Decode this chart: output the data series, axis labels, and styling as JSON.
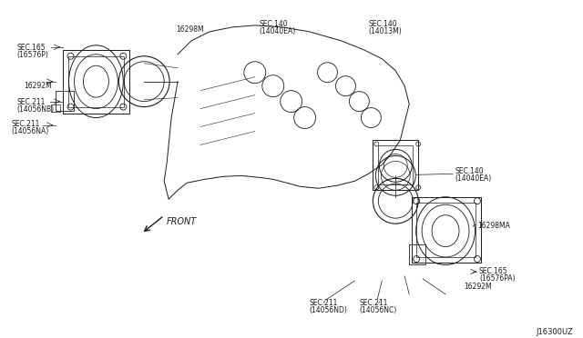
{
  "bg_color": "#ffffff",
  "line_color": "#1a1a1a",
  "fig_width": 6.4,
  "fig_height": 3.72,
  "dpi": 100,
  "labels": {
    "top_left_part": "16298M",
    "sec165_top": "SEC.165",
    "sec165p_top": "(16576P)",
    "sec140_left": "SEC.140",
    "sec140ea_left": "(14040EA)",
    "sec140_right": "SEC.140",
    "sec140m_right": "(14013M)",
    "label_16292M_left": "16292M",
    "sec211_nb": "SEC.211",
    "sec211_nb2": "(14056NB)",
    "sec211_na": "SEC.211",
    "sec211_na2": "(14056NA)",
    "sec140_bottom_right": "SEC.140",
    "sec140ea_bottom_right": "(14040EA)",
    "label_16298MA": "16298MA",
    "sec165_bottom": "SEC.165",
    "sec165pa_bottom": "(16576PA)",
    "label_16292M_bottom": "16292M",
    "sec211_nd": "SEC.211",
    "sec211_nd2": "(14056ND)",
    "sec211_nc": "SEC.211",
    "sec211_nc2": "(14056NC)",
    "front_label": "FRONT",
    "part_number": "J16300UZ"
  }
}
